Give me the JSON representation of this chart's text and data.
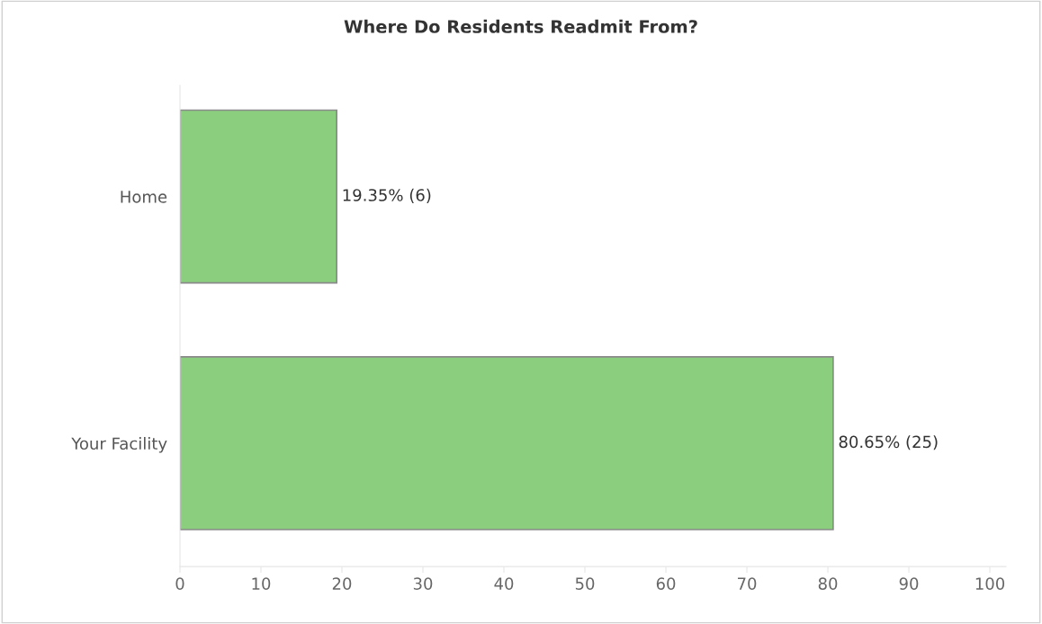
{
  "chart_data": {
    "type": "bar",
    "orientation": "horizontal",
    "title": "Where Do Residents Readmit From?",
    "categories": [
      "Home",
      "Your Facility"
    ],
    "values": [
      19.35,
      80.65
    ],
    "value_labels": [
      "19.35% (6)",
      "80.65% (25)"
    ],
    "color": "#8ace7e",
    "xlim": [
      0,
      102
    ],
    "xticks": [
      0,
      10,
      20,
      30,
      40,
      50,
      60,
      70,
      80,
      90,
      100
    ],
    "grid": false,
    "legend": false
  }
}
